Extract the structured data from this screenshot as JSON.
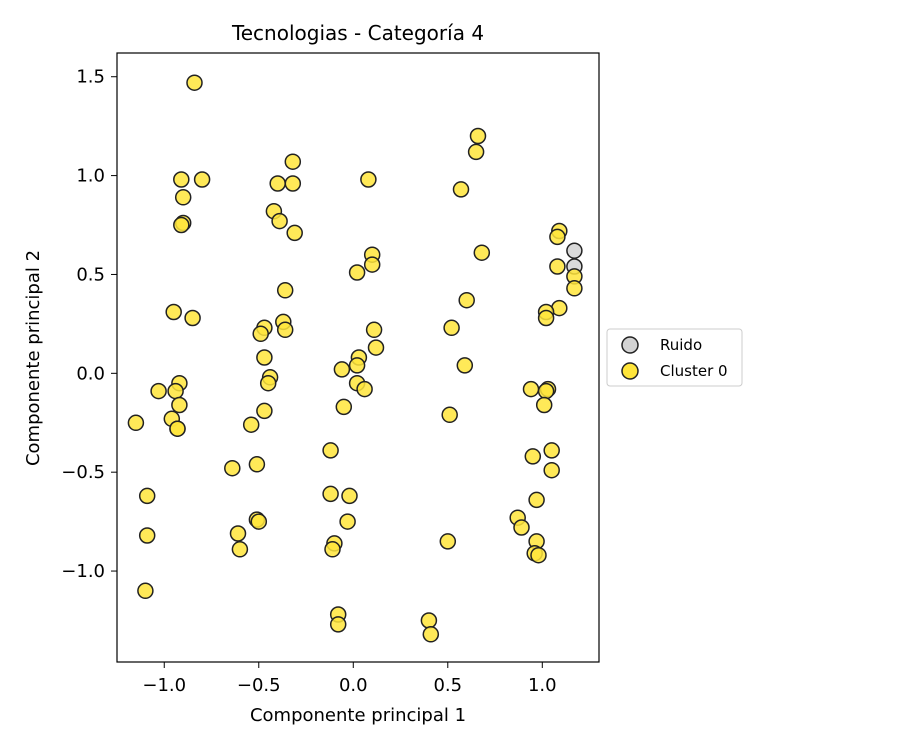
{
  "chart_data": {
    "type": "scatter",
    "title": "Tecnologias - Categoría 4",
    "xlabel": "Componente principal 1",
    "ylabel": "Componente principal 2",
    "xlim": [
      -1.25,
      1.3
    ],
    "ylim": [
      -1.46,
      1.62
    ],
    "x_ticks": [
      -1.0,
      -0.5,
      0.0,
      0.5,
      1.0
    ],
    "x_tick_labels": [
      "−1.0",
      "−0.5",
      "0.0",
      "0.5",
      "1.0"
    ],
    "y_ticks": [
      -1.0,
      -0.5,
      0.0,
      0.5,
      1.0,
      1.5
    ],
    "y_tick_labels": [
      "−1.0",
      "−0.5",
      "0.0",
      "0.5",
      "1.0",
      "1.5"
    ],
    "grid": false,
    "legend_position": "right, outside plot",
    "series": [
      {
        "name": "Ruido",
        "color": "#d3d3d3",
        "points": [
          [
            1.17,
            0.62
          ],
          [
            1.17,
            0.54
          ]
        ]
      },
      {
        "name": "Cluster 0",
        "color": "#ffe53b",
        "points": [
          [
            -0.84,
            1.47
          ],
          [
            -0.91,
            0.98
          ],
          [
            -0.8,
            0.98
          ],
          [
            -0.9,
            0.89
          ],
          [
            -0.9,
            0.76
          ],
          [
            -0.91,
            0.75
          ],
          [
            -0.95,
            0.31
          ],
          [
            -0.85,
            0.28
          ],
          [
            -0.92,
            -0.05
          ],
          [
            -1.03,
            -0.09
          ],
          [
            -0.94,
            -0.09
          ],
          [
            -0.96,
            -0.23
          ],
          [
            -0.92,
            -0.16
          ],
          [
            -0.93,
            -0.28
          ],
          [
            -0.93,
            -0.28
          ],
          [
            -1.15,
            -0.25
          ],
          [
            -1.09,
            -0.62
          ],
          [
            -1.09,
            -0.82
          ],
          [
            -1.1,
            -1.1
          ],
          [
            -0.32,
            1.07
          ],
          [
            -0.4,
            0.96
          ],
          [
            -0.32,
            0.96
          ],
          [
            -0.42,
            0.82
          ],
          [
            -0.39,
            0.77
          ],
          [
            -0.31,
            0.71
          ],
          [
            -0.36,
            0.42
          ],
          [
            -0.37,
            0.26
          ],
          [
            -0.36,
            0.22
          ],
          [
            -0.47,
            0.23
          ],
          [
            -0.49,
            0.2
          ],
          [
            -0.47,
            0.08
          ],
          [
            -0.44,
            -0.02
          ],
          [
            -0.45,
            -0.05
          ],
          [
            -0.47,
            -0.19
          ],
          [
            -0.54,
            -0.26
          ],
          [
            -0.64,
            -0.48
          ],
          [
            -0.51,
            -0.46
          ],
          [
            -0.51,
            -0.74
          ],
          [
            -0.5,
            -0.75
          ],
          [
            -0.61,
            -0.81
          ],
          [
            -0.6,
            -0.89
          ],
          [
            0.08,
            0.98
          ],
          [
            0.1,
            0.6
          ],
          [
            0.1,
            0.55
          ],
          [
            0.02,
            0.51
          ],
          [
            0.11,
            0.22
          ],
          [
            0.12,
            0.13
          ],
          [
            0.03,
            0.08
          ],
          [
            0.02,
            0.04
          ],
          [
            -0.06,
            0.02
          ],
          [
            0.02,
            -0.05
          ],
          [
            0.06,
            -0.08
          ],
          [
            -0.05,
            -0.17
          ],
          [
            -0.12,
            -0.39
          ],
          [
            -0.12,
            -0.61
          ],
          [
            -0.02,
            -0.62
          ],
          [
            -0.03,
            -0.75
          ],
          [
            -0.1,
            -0.86
          ],
          [
            -0.11,
            -0.89
          ],
          [
            -0.08,
            -1.22
          ],
          [
            -0.08,
            -1.27
          ],
          [
            0.66,
            1.2
          ],
          [
            0.65,
            1.12
          ],
          [
            0.57,
            0.93
          ],
          [
            0.68,
            0.61
          ],
          [
            0.6,
            0.37
          ],
          [
            0.52,
            0.23
          ],
          [
            0.59,
            0.04
          ],
          [
            0.51,
            -0.21
          ],
          [
            0.5,
            -0.85
          ],
          [
            0.4,
            -1.25
          ],
          [
            0.41,
            -1.32
          ],
          [
            1.09,
            0.72
          ],
          [
            1.08,
            0.69
          ],
          [
            1.08,
            0.54
          ],
          [
            1.17,
            0.49
          ],
          [
            1.17,
            0.43
          ],
          [
            1.09,
            0.33
          ],
          [
            1.02,
            0.31
          ],
          [
            1.02,
            0.28
          ],
          [
            1.03,
            -0.08
          ],
          [
            1.02,
            -0.09
          ],
          [
            0.94,
            -0.08
          ],
          [
            1.01,
            -0.16
          ],
          [
            1.05,
            -0.39
          ],
          [
            0.95,
            -0.42
          ],
          [
            1.05,
            -0.49
          ],
          [
            0.97,
            -0.64
          ],
          [
            0.87,
            -0.73
          ],
          [
            0.89,
            -0.78
          ],
          [
            0.97,
            -0.85
          ],
          [
            0.96,
            -0.91
          ],
          [
            0.98,
            -0.92
          ]
        ]
      }
    ]
  }
}
